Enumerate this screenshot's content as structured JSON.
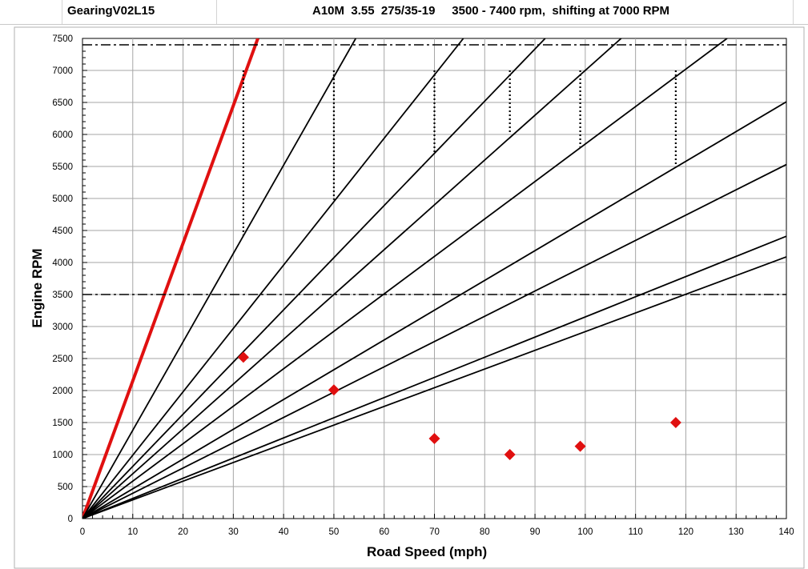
{
  "sheet": {
    "doc_name": "GearingV02L15"
  },
  "chart_data": {
    "type": "line",
    "title": "A10M  3.55  275/35-19     3500 - 7400 rpm,  shifting at 7000 RPM",
    "xlabel": "Road Speed  (mph)",
    "ylabel": "Engine RPM",
    "xlim": [
      0,
      140
    ],
    "ylim": [
      0,
      7500
    ],
    "x_ticks": [
      0,
      10,
      20,
      30,
      40,
      50,
      60,
      70,
      80,
      90,
      100,
      110,
      120,
      130,
      140
    ],
    "y_ticks": [
      0,
      500,
      1000,
      1500,
      2000,
      2500,
      3000,
      3500,
      4000,
      4500,
      5000,
      5500,
      6000,
      6500,
      7000,
      7500
    ],
    "x_minor_step": 2,
    "y_minor_step": 100,
    "grid": true,
    "colors": {
      "first_gear": "#e01010",
      "gear": "#000000",
      "marker": "#e01010",
      "grid": "#a6a6a6"
    },
    "gear_lines": [
      {
        "rpm_per_mph": 215,
        "highlight": true
      },
      {
        "rpm_per_mph": 138
      },
      {
        "rpm_per_mph": 99
      },
      {
        "rpm_per_mph": 81.5
      },
      {
        "rpm_per_mph": 70
      },
      {
        "rpm_per_mph": 58.5
      },
      {
        "rpm_per_mph": 46.5
      },
      {
        "rpm_per_mph": 39.5
      },
      {
        "rpm_per_mph": 31.5
      },
      {
        "rpm_per_mph": 29.2
      }
    ],
    "rpm_band_lines": [
      7400,
      3500
    ],
    "shift_points": [
      {
        "x": 32,
        "from_rpm": 7000,
        "to_rpm": 4420
      },
      {
        "x": 50,
        "from_rpm": 7000,
        "to_rpm": 4980
      },
      {
        "x": 70,
        "from_rpm": 7000,
        "to_rpm": 5700
      },
      {
        "x": 85,
        "from_rpm": 7000,
        "to_rpm": 6000
      },
      {
        "x": 99,
        "from_rpm": 7000,
        "to_rpm": 5800
      },
      {
        "x": 118,
        "from_rpm": 7000,
        "to_rpm": 5520
      }
    ],
    "markers": [
      {
        "x": 32,
        "y": 2520
      },
      {
        "x": 50,
        "y": 2010
      },
      {
        "x": 70,
        "y": 1250
      },
      {
        "x": 85,
        "y": 1000
      },
      {
        "x": 99,
        "y": 1130
      },
      {
        "x": 118,
        "y": 1500
      }
    ]
  }
}
